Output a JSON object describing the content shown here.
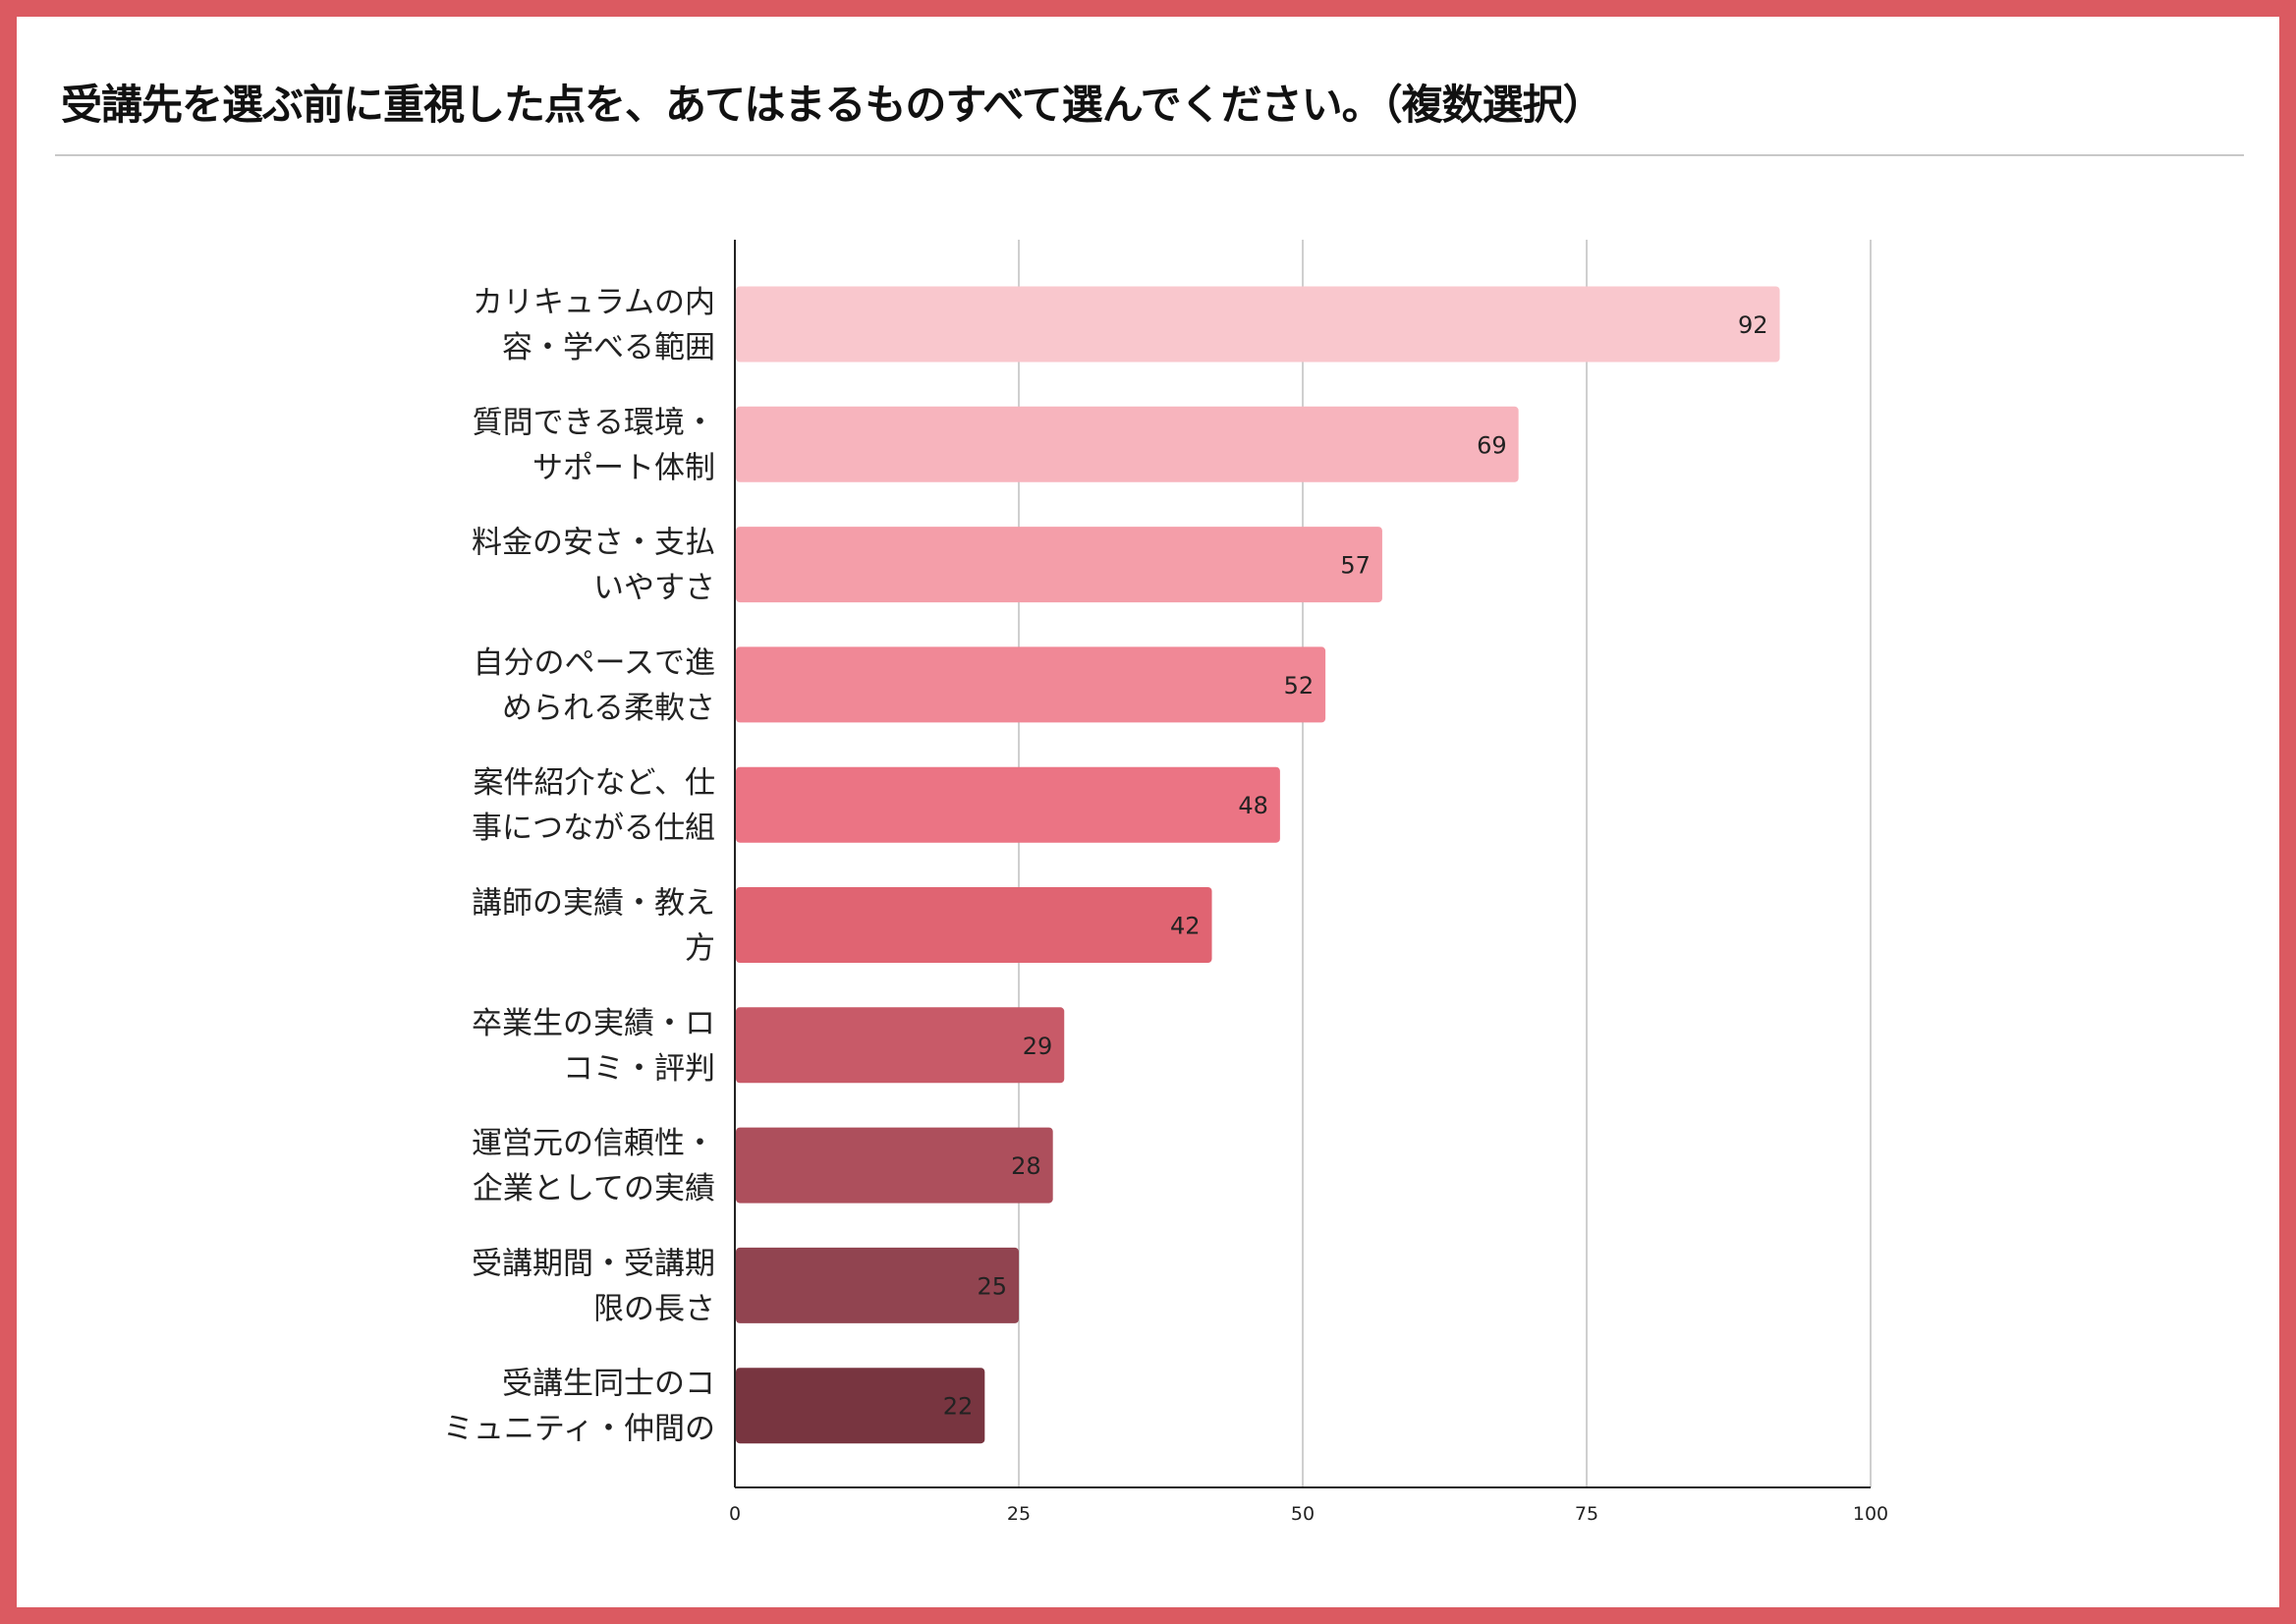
{
  "header": {
    "title": "受講先を選ぶ前に重視した点を、あてはまるものすべて選んでください。（複数選択）"
  },
  "chart_data": {
    "type": "bar",
    "orientation": "horizontal",
    "categories": [
      [
        "カリキュラムの内",
        "容・学べる範囲"
      ],
      [
        "質問できる環境・",
        "サポート体制"
      ],
      [
        "料金の安さ・支払",
        "いやすさ"
      ],
      [
        "自分のペースで進",
        "められる柔軟さ"
      ],
      [
        "案件紹介など、仕",
        "事につながる仕組"
      ],
      [
        "講師の実績・教え",
        "方"
      ],
      [
        "卒業生の実績・ロ",
        "コミ・評判"
      ],
      [
        "運営元の信頼性・",
        "企業としての実績"
      ],
      [
        "受講期間・受講期",
        "限の長さ"
      ],
      [
        "受講生同士のコ",
        "ミュニティ・仲間の"
      ]
    ],
    "values": [
      92,
      69,
      57,
      52,
      48,
      42,
      29,
      28,
      25,
      22
    ],
    "value_labels": [
      "92",
      "69",
      "57",
      "52",
      "48",
      "42",
      "29",
      "28",
      "25",
      "22"
    ],
    "xlim": [
      0,
      100
    ],
    "xticks": [
      "0",
      "25",
      "50",
      "75",
      "100"
    ],
    "grid": true,
    "colors": [
      "#f9c7cd",
      "#f7b4bd",
      "#f49ea9",
      "#f08896",
      "#eb7484",
      "#e06472",
      "#c85a68",
      "#ad4f5c",
      "#914450",
      "#783540"
    ],
    "border_color": "#db5a61"
  }
}
